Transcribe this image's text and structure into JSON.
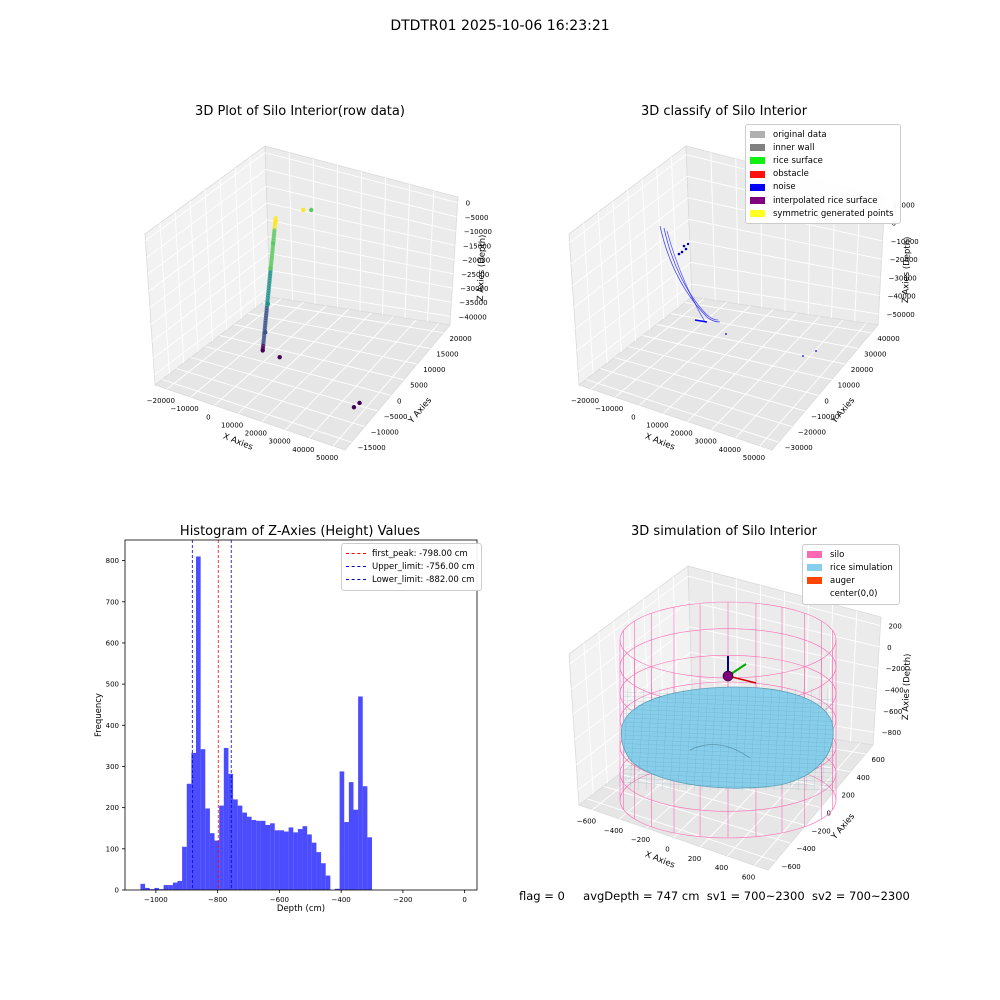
{
  "suptitle": "DTDTR01 2025-10-06 16:23:21",
  "chart_data": [
    {
      "type": "scatter",
      "title": "3D Plot of Silo Interior(row data)",
      "xlabel": "X Axies",
      "ylabel": "Y Axies",
      "zlabel": "Z Axies (Depth)",
      "x_ticks": [
        "−20000",
        "−10000",
        "0",
        "10000",
        "20000",
        "30000",
        "40000",
        "50000"
      ],
      "y_ticks": [
        "−15000",
        "−10000",
        "−5000",
        "0",
        "5000",
        "10000",
        "15000",
        "20000"
      ],
      "z_ticks": [
        "0",
        "−5000",
        "−10000",
        "−15000",
        "−20000",
        "−25000",
        "−30000",
        "−35000",
        "−40000"
      ],
      "xlim": [
        -25000,
        55000
      ],
      "ylim": [
        -18000,
        23000
      ],
      "zlim": [
        -42000,
        1000
      ],
      "grid": true,
      "colormap": "viridis",
      "points": [
        {
          "x": 1000,
          "y": 3000,
          "z": -2000
        },
        {
          "x": 500,
          "y": 2500,
          "z": -8000
        },
        {
          "x": 0,
          "y": 2000,
          "z": -15000
        },
        {
          "x": -500,
          "y": 1500,
          "z": -25000
        },
        {
          "x": -1000,
          "y": 1000,
          "z": -33000
        },
        {
          "x": -1500,
          "y": 500,
          "z": -38000
        },
        {
          "x": 2000,
          "y": 12000,
          "z": -4000
        },
        {
          "x": 3000,
          "y": 14000,
          "z": -5000
        },
        {
          "x": 6000,
          "y": 200,
          "z": -38000
        },
        {
          "x": 44000,
          "y": -3500,
          "z": -40000
        },
        {
          "x": 44000,
          "y": -5500,
          "z": -40000
        }
      ]
    },
    {
      "type": "scatter",
      "title": "3D classify of Silo Interior",
      "xlabel": "X Axies",
      "ylabel": "Y Axies",
      "zlabel": "Z Axies (Depth)",
      "x_ticks": [
        "−20000",
        "−10000",
        "0",
        "10000",
        "20000",
        "30000",
        "40000",
        "50000"
      ],
      "y_ticks": [
        "−30000",
        "−20000",
        "−10000",
        "0",
        "10000",
        "20000",
        "30000",
        "40000"
      ],
      "z_ticks": [
        "10000",
        "0",
        "−10000",
        "−20000",
        "−30000",
        "−40000",
        "−50000"
      ],
      "grid": true,
      "legend": [
        "original data",
        "inner wall",
        "rice surface",
        "obstacle",
        "noise",
        "interpolated rice surface",
        "symmetric generated points"
      ],
      "legend_colors": [
        "#b0b0b0",
        "#808080",
        "#11ee11",
        "#ff1111",
        "#0000ff",
        "#800080",
        "#ffff22"
      ],
      "legend_position": "upper right"
    },
    {
      "type": "bar",
      "title": "Histogram of Z-Axies (Height) Values",
      "xlabel": "Depth (cm)",
      "ylabel": "Frequency",
      "xlim": [
        -1100,
        40
      ],
      "ylim": [
        0,
        850
      ],
      "x_ticks": [
        -1000,
        -800,
        -600,
        -400,
        -200,
        0
      ],
      "x_tick_labels": [
        "−1000",
        "−800",
        "−600",
        "−400",
        "−200",
        "0"
      ],
      "y_ticks": [
        0,
        100,
        200,
        300,
        400,
        500,
        600,
        700,
        800
      ],
      "bin_start": -1050,
      "bin_width": 15,
      "values": [
        15,
        5,
        2,
        5,
        2,
        12,
        12,
        18,
        22,
        105,
        258,
        333,
        810,
        342,
        198,
        138,
        120,
        205,
        345,
        282,
        220,
        205,
        188,
        178,
        170,
        168,
        168,
        158,
        162,
        145,
        145,
        142,
        152,
        140,
        148,
        155,
        135,
        115,
        92,
        65,
        35,
        0,
        3,
        288,
        165,
        262,
        195,
        470,
        252,
        128
      ],
      "color": "#0000ff",
      "lines": [
        {
          "label": "first_peak: -798.00 cm",
          "x": -798,
          "color": "#ff0000"
        },
        {
          "label": "Upper_limit: -756.00 cm",
          "x": -756,
          "color": "#0000cc"
        },
        {
          "label": "Lower_limit: -882.00 cm",
          "x": -882,
          "color": "#0000cc"
        }
      ],
      "legend_position": "upper right"
    },
    {
      "type": "surface",
      "title": "3D simulation of Silo Interior",
      "xlabel": "X Axies",
      "ylabel": "Y Axies",
      "zlabel": "Z Axies (Depth)",
      "x_ticks": [
        "−600",
        "−400",
        "−200",
        "0",
        "200",
        "400",
        "600"
      ],
      "y_ticks": [
        "−600",
        "−400",
        "−200",
        "0",
        "200",
        "400",
        "600"
      ],
      "z_ticks": [
        "200",
        "0",
        "−200",
        "−400",
        "−600",
        "−800"
      ],
      "grid": true,
      "legend": [
        "silo",
        "rice simulation",
        "auger",
        "center(0,0)"
      ],
      "legend_colors": [
        "#ff69b4",
        "#87ceeb",
        "#ff4500",
        ""
      ],
      "legend_position": "upper right",
      "avg_depth_cm": 747
    }
  ],
  "footer": {
    "flag": "flag = 0",
    "avg": "avgDepth = 747 cm",
    "sv1": "sv1 = 700~2300",
    "sv2": "sv2 = 700~2300"
  }
}
